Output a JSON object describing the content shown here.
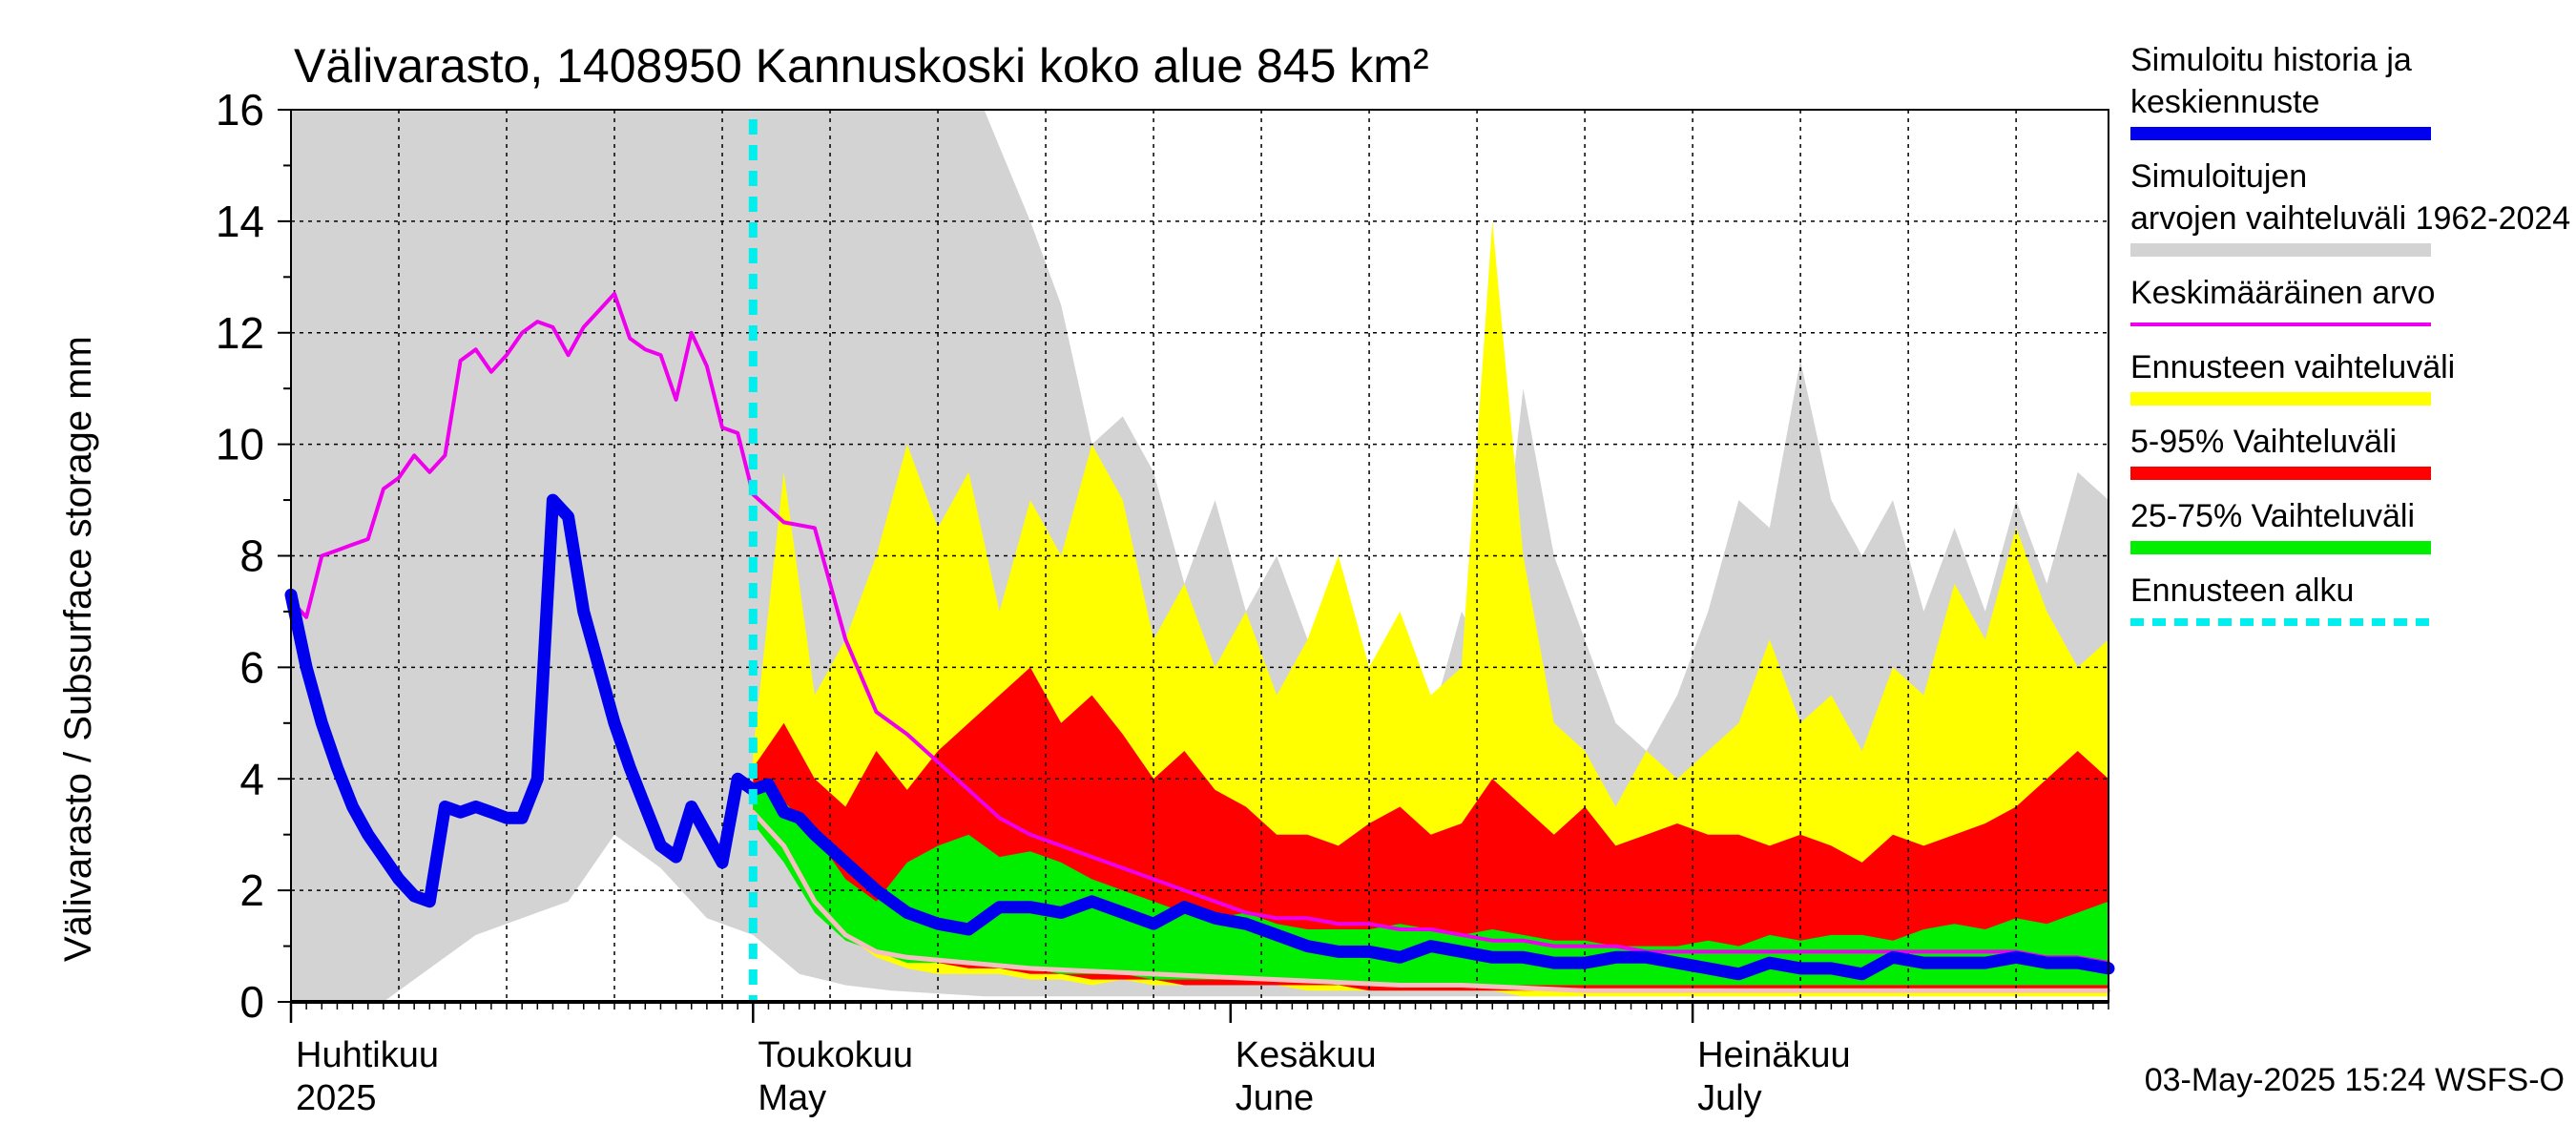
{
  "chart_data": {
    "type": "area",
    "title": "Välivarasto, 1408950 Kannuskoski koko alue 845 km²",
    "ylabel": "Välivarasto / Subsurface storage  mm",
    "ylim": [
      0,
      16
    ],
    "yticks": [
      "0",
      "2",
      "4",
      "6",
      "8",
      "10",
      "12",
      "14",
      "16"
    ],
    "x_range_days": [
      0,
      118
    ],
    "month_labels": [
      {
        "fi": "Huhtikuu",
        "en": "2025",
        "day": 0
      },
      {
        "fi": "Toukokuu",
        "en": "May",
        "day": 30
      },
      {
        "fi": "Kesäkuu",
        "en": "June",
        "day": 61
      },
      {
        "fi": "Heinäkuu",
        "en": "July",
        "day": 91
      }
    ],
    "forecast_start_day": 30,
    "footer": "03-May-2025 15:24 WSFS-O",
    "grid": true,
    "legend_position": "right",
    "legend": [
      {
        "label": "Simuloitu historia ja keskiennuste",
        "color": "#0000ee",
        "style": "thick"
      },
      {
        "label": "Simuloitujen arvojen vaihteluväli 1962-2024",
        "color": "#d3d3d3",
        "style": "thick"
      },
      {
        "label": "Keskimääräinen arvo",
        "color": "#ee00ee",
        "style": "thin"
      },
      {
        "label": "Ennusteen vaihteluväli",
        "color": "#ffff00",
        "style": "thick"
      },
      {
        "label": "5-95% Vaihteluväli",
        "color": "#ff0000",
        "style": "thick"
      },
      {
        "label": "25-75% Vaihteluväli",
        "color": "#00ee00",
        "style": "thick"
      },
      {
        "label": "Ennusteen alku",
        "color": "#00eeee",
        "style": "dashed"
      }
    ],
    "series": [
      {
        "name": "Simuloitujen arvojen vaihteluväli 1962-2024",
        "kind": "band",
        "color": "#d3d3d3",
        "x": [
          0,
          3,
          6,
          9,
          12,
          15,
          18,
          21,
          24,
          27,
          30,
          33,
          36,
          39,
          42,
          45,
          48,
          50,
          52,
          54,
          56,
          58,
          60,
          62,
          64,
          66,
          68,
          70,
          72,
          74,
          76,
          78,
          80,
          82,
          84,
          86,
          88,
          90,
          92,
          94,
          96,
          98,
          100,
          102,
          104,
          106,
          108,
          110,
          112,
          114,
          116,
          118
        ],
        "lower": [
          0,
          0,
          0,
          0.6,
          1.2,
          1.5,
          1.8,
          3.0,
          2.4,
          1.5,
          1.2,
          0.5,
          0.3,
          0.2,
          0.15,
          0.1,
          0.1,
          0.1,
          0.1,
          0.1,
          0.1,
          0.1,
          0.1,
          0.1,
          0.1,
          0.1,
          0.1,
          0.1,
          0.1,
          0.1,
          0.1,
          0.1,
          0.1,
          0.1,
          0.1,
          0.1,
          0.1,
          0.1,
          0.1,
          0.1,
          0.1,
          0.1,
          0.1,
          0.1,
          0.1,
          0.1,
          0.1,
          0.1,
          0.1,
          0.1,
          0.1,
          0.1
        ],
        "upper": [
          16,
          16,
          16,
          16,
          16,
          16,
          16,
          16,
          16,
          16,
          16,
          16,
          16,
          16,
          16,
          16,
          14.0,
          12.5,
          10.0,
          10.5,
          9.5,
          7.5,
          9.0,
          7.0,
          8.0,
          6.5,
          7.5,
          5.5,
          6.5,
          5.0,
          7.0,
          6.0,
          11.0,
          8.0,
          6.5,
          5.0,
          4.5,
          5.5,
          7.0,
          9.0,
          8.5,
          11.5,
          9.0,
          8.0,
          9.0,
          7.0,
          8.5,
          7.0,
          9.0,
          7.5,
          9.5,
          9.0
        ]
      },
      {
        "name": "Ennusteen vaihteluväli",
        "kind": "band",
        "color": "#ffff00",
        "x": [
          30,
          32,
          34,
          36,
          38,
          40,
          42,
          44,
          46,
          48,
          50,
          52,
          54,
          56,
          58,
          60,
          62,
          64,
          66,
          68,
          70,
          72,
          74,
          76,
          78,
          80,
          82,
          84,
          86,
          88,
          90,
          92,
          94,
          96,
          98,
          100,
          102,
          104,
          106,
          108,
          110,
          112,
          114,
          116,
          118
        ],
        "lower": [
          3.6,
          3.0,
          2.0,
          1.2,
          0.8,
          0.6,
          0.5,
          0.5,
          0.5,
          0.4,
          0.4,
          0.3,
          0.4,
          0.3,
          0.3,
          0.3,
          0.3,
          0.3,
          0.2,
          0.2,
          0.2,
          0.2,
          0.2,
          0.2,
          0.2,
          0.1,
          0.1,
          0.1,
          0.1,
          0.1,
          0.1,
          0.1,
          0.1,
          0.1,
          0.1,
          0.1,
          0.1,
          0.1,
          0.1,
          0.1,
          0.1,
          0.1,
          0.1,
          0.1,
          0.1
        ],
        "upper": [
          4.5,
          9.5,
          5.5,
          6.5,
          8.0,
          10.0,
          8.5,
          9.5,
          7.0,
          9.0,
          8.0,
          10.0,
          9.0,
          6.5,
          7.5,
          6.0,
          7.0,
          5.5,
          6.5,
          8.0,
          6.0,
          7.0,
          5.5,
          6.0,
          14.0,
          8.0,
          5.0,
          4.5,
          3.5,
          4.5,
          4.0,
          4.5,
          5.0,
          6.5,
          5.0,
          5.5,
          4.5,
          6.0,
          5.5,
          7.5,
          6.5,
          8.5,
          7.0,
          6.0,
          6.5
        ]
      },
      {
        "name": "5-95% Vaihteluväli",
        "kind": "band",
        "color": "#ff0000",
        "x": [
          30,
          32,
          34,
          36,
          38,
          40,
          42,
          44,
          46,
          48,
          50,
          52,
          54,
          56,
          58,
          60,
          62,
          64,
          66,
          68,
          70,
          72,
          74,
          76,
          78,
          80,
          82,
          84,
          86,
          88,
          90,
          92,
          94,
          96,
          98,
          100,
          102,
          104,
          106,
          108,
          110,
          112,
          114,
          116,
          118
        ],
        "lower": [
          3.4,
          2.8,
          1.8,
          1.2,
          1.0,
          0.8,
          0.7,
          0.6,
          0.6,
          0.5,
          0.5,
          0.4,
          0.4,
          0.4,
          0.3,
          0.3,
          0.3,
          0.3,
          0.3,
          0.3,
          0.2,
          0.2,
          0.2,
          0.2,
          0.2,
          0.2,
          0.2,
          0.2,
          0.2,
          0.2,
          0.2,
          0.2,
          0.2,
          0.2,
          0.2,
          0.2,
          0.2,
          0.2,
          0.2,
          0.2,
          0.2,
          0.2,
          0.2,
          0.2,
          0.2
        ],
        "upper": [
          4.2,
          5.0,
          4.0,
          3.5,
          4.5,
          3.8,
          4.5,
          5.0,
          5.5,
          6.0,
          5.0,
          5.5,
          4.8,
          4.0,
          4.5,
          3.8,
          3.5,
          3.0,
          3.0,
          2.8,
          3.2,
          3.5,
          3.0,
          3.2,
          4.0,
          3.5,
          3.0,
          3.5,
          2.8,
          3.0,
          3.2,
          3.0,
          3.0,
          2.8,
          3.0,
          2.8,
          2.5,
          3.0,
          2.8,
          3.0,
          3.2,
          3.5,
          4.0,
          4.5,
          4.0
        ]
      },
      {
        "name": "25-75% Vaihteluväli",
        "kind": "band",
        "color": "#00ee00",
        "x": [
          30,
          32,
          34,
          36,
          38,
          40,
          42,
          44,
          46,
          48,
          50,
          52,
          54,
          56,
          58,
          60,
          62,
          64,
          66,
          68,
          70,
          72,
          74,
          76,
          78,
          80,
          82,
          84,
          86,
          88,
          90,
          92,
          94,
          96,
          98,
          100,
          102,
          104,
          106,
          108,
          110,
          112,
          114,
          116,
          118
        ],
        "lower": [
          3.2,
          2.5,
          1.6,
          1.1,
          0.9,
          0.7,
          0.7,
          0.7,
          0.6,
          0.6,
          0.5,
          0.5,
          0.5,
          0.4,
          0.4,
          0.4,
          0.4,
          0.4,
          0.4,
          0.3,
          0.3,
          0.3,
          0.3,
          0.3,
          0.3,
          0.3,
          0.3,
          0.3,
          0.3,
          0.3,
          0.3,
          0.3,
          0.3,
          0.3,
          0.3,
          0.3,
          0.3,
          0.3,
          0.3,
          0.3,
          0.3,
          0.3,
          0.3,
          0.3,
          0.3
        ],
        "upper": [
          3.9,
          3.6,
          3.0,
          2.2,
          1.8,
          2.5,
          2.8,
          3.0,
          2.6,
          2.7,
          2.5,
          2.2,
          2.0,
          1.8,
          1.6,
          1.5,
          1.6,
          1.4,
          1.3,
          1.3,
          1.3,
          1.4,
          1.3,
          1.2,
          1.3,
          1.2,
          1.1,
          1.1,
          1.0,
          1.0,
          1.0,
          1.1,
          1.0,
          1.2,
          1.1,
          1.2,
          1.2,
          1.1,
          1.3,
          1.4,
          1.3,
          1.5,
          1.4,
          1.6,
          1.8
        ]
      },
      {
        "name": "Keskimääräinen arvo",
        "kind": "line",
        "color": "#ee00ee",
        "x": [
          0,
          1,
          2,
          3,
          4,
          5,
          6,
          7,
          8,
          9,
          10,
          11,
          12,
          13,
          14,
          15,
          16,
          17,
          18,
          19,
          20,
          21,
          22,
          23,
          24,
          25,
          26,
          27,
          28,
          29,
          30,
          32,
          34,
          36,
          38,
          40,
          42,
          44,
          46,
          48,
          50,
          52,
          54,
          56,
          58,
          60,
          62,
          64,
          66,
          68,
          70,
          72,
          74,
          76,
          78,
          80,
          82,
          84,
          86,
          88,
          90,
          92,
          94,
          96,
          98,
          100,
          102,
          104,
          106,
          108,
          110,
          112,
          114,
          116,
          118
        ],
        "y": [
          7.2,
          6.9,
          8.0,
          8.1,
          8.2,
          8.3,
          9.2,
          9.4,
          9.8,
          9.5,
          9.8,
          11.5,
          11.7,
          11.3,
          11.6,
          12.0,
          12.2,
          12.1,
          11.6,
          12.1,
          12.4,
          12.7,
          11.9,
          11.7,
          11.6,
          10.8,
          12.0,
          11.4,
          10.3,
          10.2,
          9.1,
          8.6,
          8.5,
          6.5,
          5.2,
          4.8,
          4.3,
          3.8,
          3.3,
          3.0,
          2.8,
          2.6,
          2.4,
          2.2,
          2.0,
          1.8,
          1.6,
          1.5,
          1.5,
          1.4,
          1.4,
          1.3,
          1.3,
          1.2,
          1.1,
          1.1,
          1.0,
          1.0,
          1.0,
          0.9,
          0.9,
          0.9,
          0.9,
          0.9,
          0.9,
          0.9,
          0.9,
          0.9,
          0.9,
          0.9,
          0.9,
          0.9,
          0.8,
          0.8,
          0.7
        ]
      },
      {
        "name": "Simuloitu historia ja keskiennuste",
        "kind": "line",
        "color": "#0000ee",
        "x": [
          0,
          1,
          2,
          3,
          4,
          5,
          6,
          7,
          8,
          9,
          10,
          11,
          12,
          13,
          14,
          15,
          16,
          17,
          18,
          19,
          20,
          21,
          22,
          23,
          24,
          25,
          26,
          27,
          28,
          29,
          30,
          31,
          32,
          33,
          34,
          36,
          38,
          40,
          42,
          44,
          46,
          48,
          50,
          52,
          54,
          56,
          58,
          60,
          62,
          64,
          66,
          68,
          70,
          72,
          74,
          76,
          78,
          80,
          82,
          84,
          86,
          88,
          90,
          92,
          94,
          96,
          98,
          100,
          102,
          104,
          106,
          108,
          110,
          112,
          114,
          116,
          118
        ],
        "y": [
          7.3,
          6.0,
          5.0,
          4.2,
          3.5,
          3.0,
          2.6,
          2.2,
          1.9,
          1.8,
          3.5,
          3.4,
          3.5,
          3.4,
          3.3,
          3.3,
          4.0,
          9.0,
          8.7,
          7.0,
          6.0,
          5.0,
          4.2,
          3.5,
          2.8,
          2.6,
          3.5,
          3.0,
          2.5,
          4.0,
          3.8,
          3.9,
          3.4,
          3.3,
          3.0,
          2.5,
          2.0,
          1.6,
          1.4,
          1.3,
          1.7,
          1.7,
          1.6,
          1.8,
          1.6,
          1.4,
          1.7,
          1.5,
          1.4,
          1.2,
          1.0,
          0.9,
          0.9,
          0.8,
          1.0,
          0.9,
          0.8,
          0.8,
          0.7,
          0.7,
          0.8,
          0.8,
          0.7,
          0.6,
          0.5,
          0.7,
          0.6,
          0.6,
          0.5,
          0.8,
          0.7,
          0.7,
          0.7,
          0.8,
          0.7,
          0.7,
          0.6
        ]
      },
      {
        "name": "Keskiennuste (alaraja)",
        "kind": "thin-line",
        "color": "#f5c0c0",
        "x": [
          30,
          32,
          34,
          36,
          38,
          40,
          44,
          48,
          52,
          56,
          60,
          64,
          68,
          72,
          76,
          80,
          84,
          88,
          92,
          96,
          100,
          104,
          108,
          112,
          116,
          118
        ],
        "y": [
          3.4,
          2.8,
          1.8,
          1.2,
          0.9,
          0.8,
          0.7,
          0.6,
          0.55,
          0.5,
          0.45,
          0.4,
          0.35,
          0.3,
          0.3,
          0.25,
          0.2,
          0.2,
          0.2,
          0.2,
          0.2,
          0.2,
          0.2,
          0.2,
          0.2,
          0.2
        ]
      }
    ]
  }
}
